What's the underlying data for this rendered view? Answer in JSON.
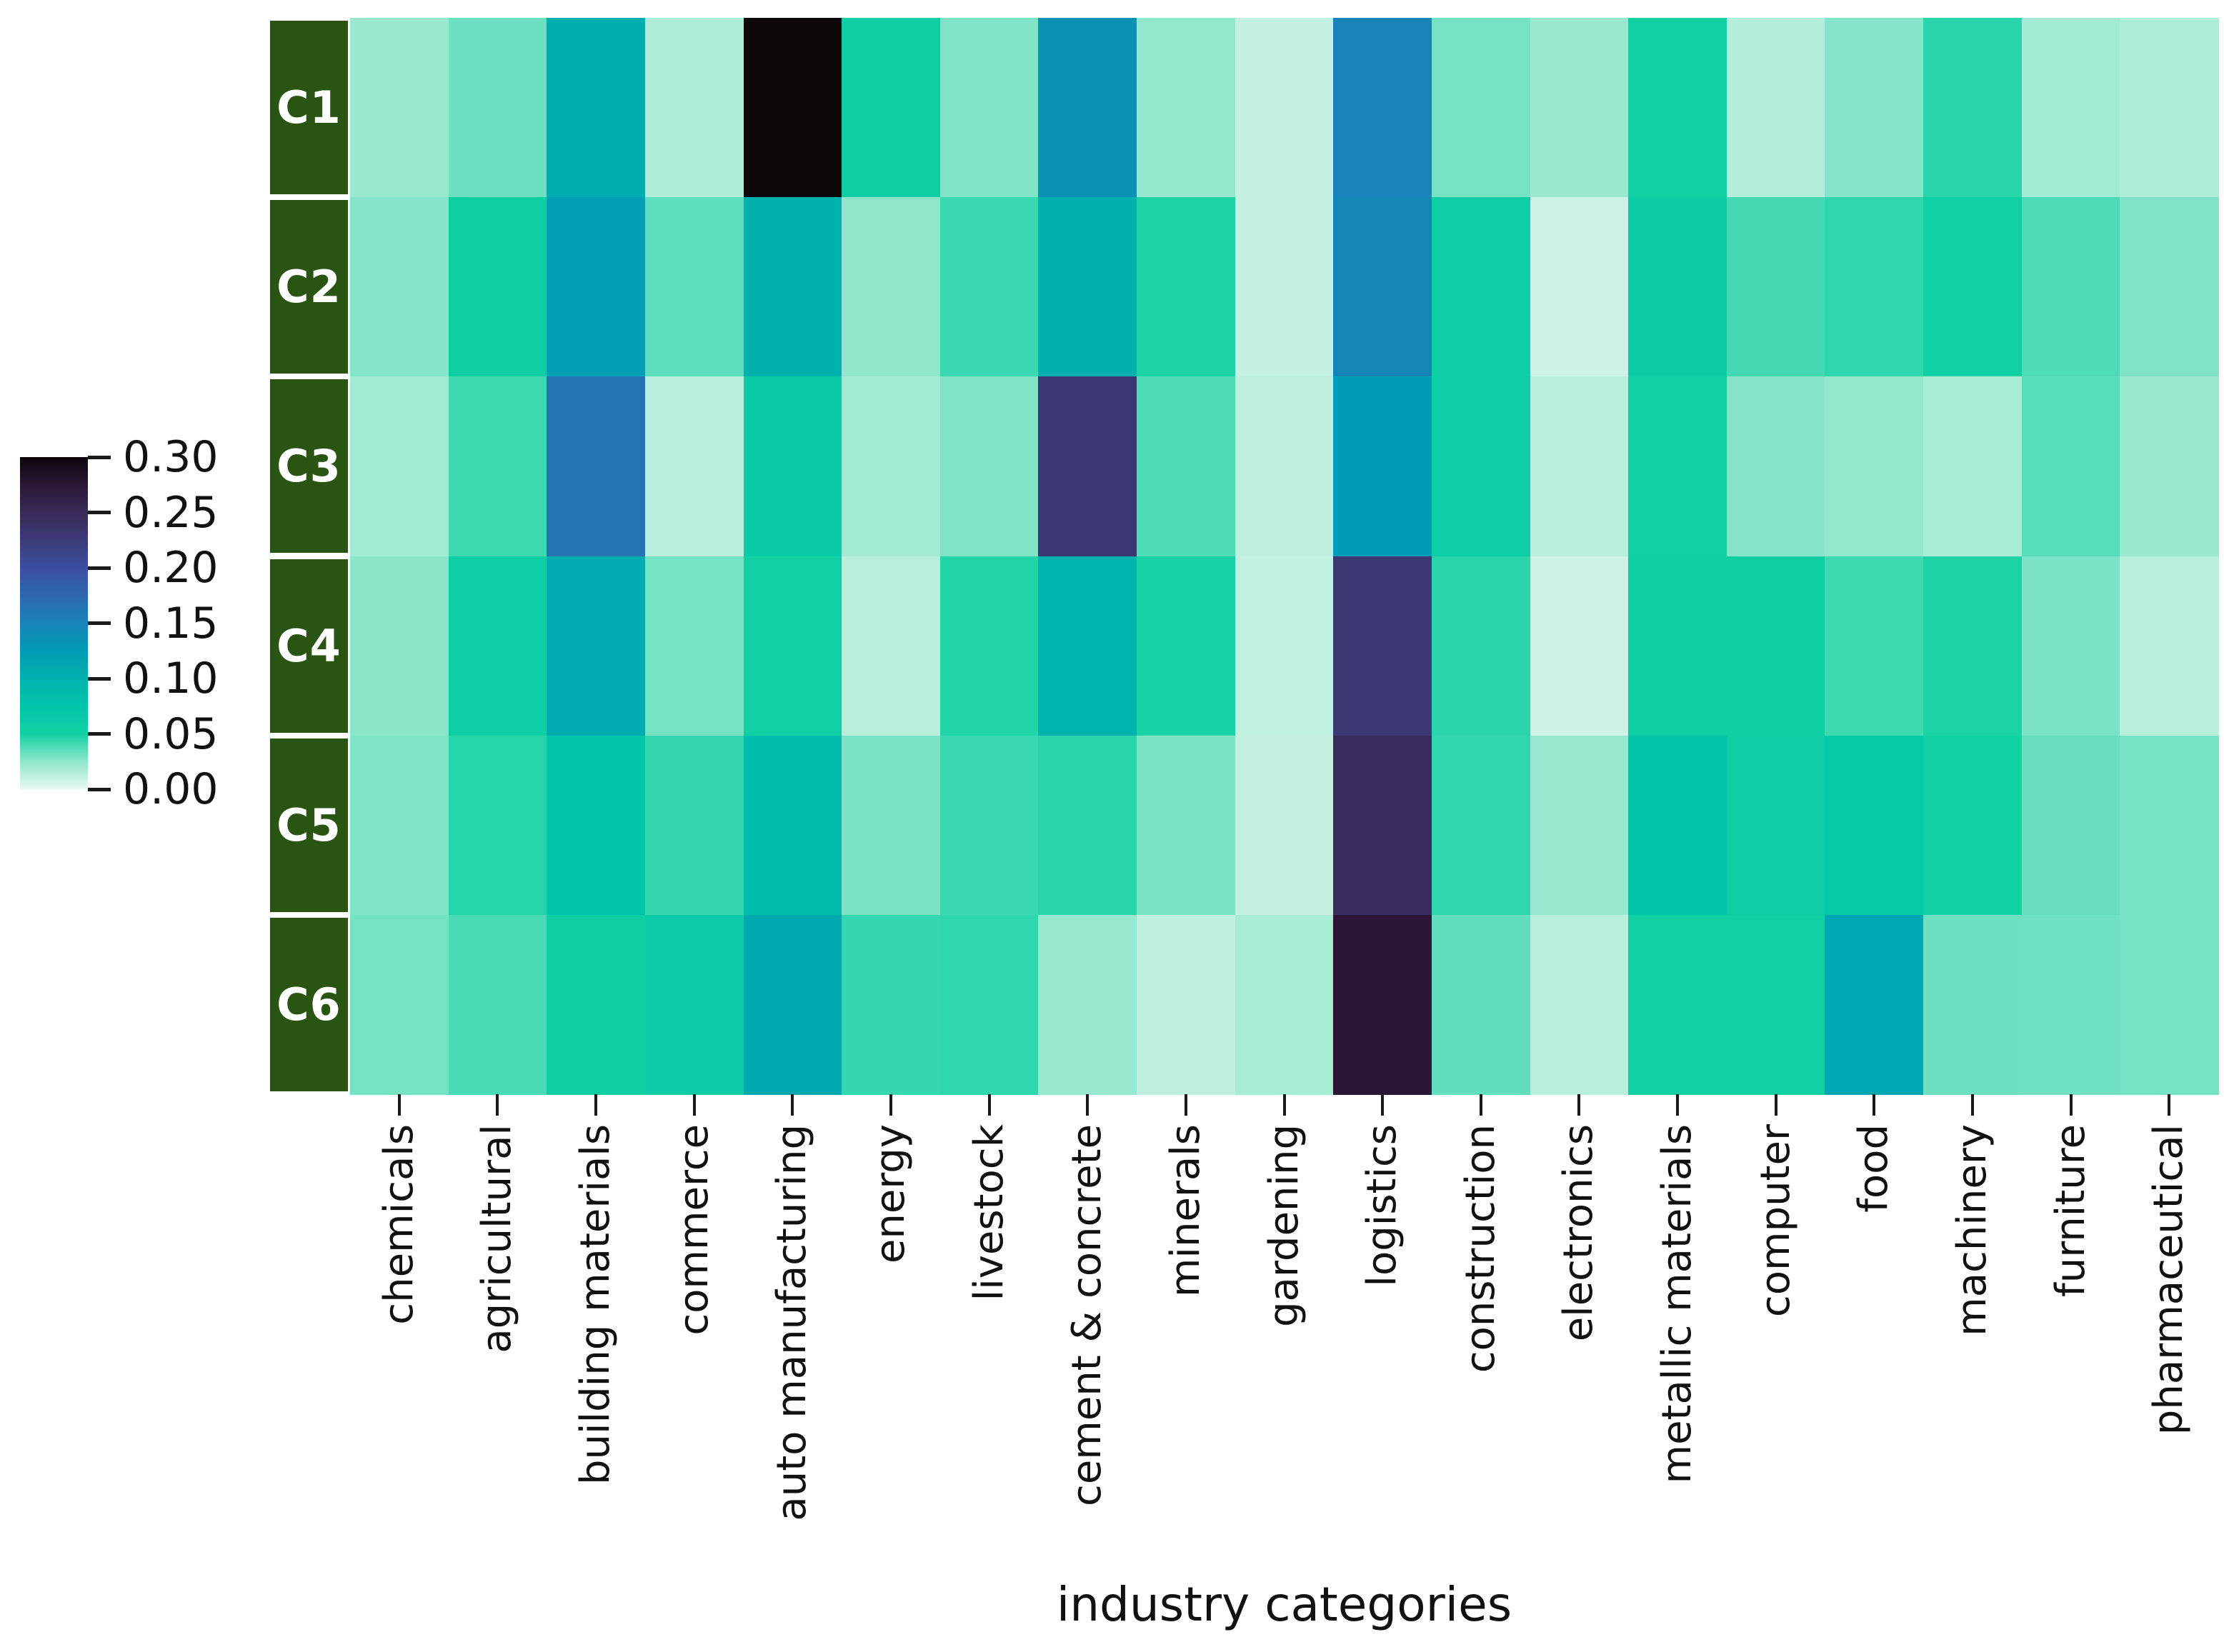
{
  "chart_data": {
    "type": "heatmap",
    "title": "",
    "xlabel": "industry categories",
    "ylabel": "",
    "rows": [
      "C1",
      "C2",
      "C3",
      "C4",
      "C5",
      "C6"
    ],
    "columns": [
      "chemicals",
      "agricultural",
      "building materials",
      "commerce",
      "auto manufacturing",
      "energy",
      "livestock",
      "cement & concrete",
      "minerals",
      "gardening",
      "logistics",
      "construction",
      "electronics",
      "metallic materials",
      "computer",
      "food",
      "machinery",
      "furniture",
      "pharmaceutical"
    ],
    "values": [
      [
        0.022,
        0.032,
        0.105,
        0.016,
        0.3,
        0.055,
        0.028,
        0.135,
        0.024,
        0.01,
        0.15,
        0.03,
        0.022,
        0.052,
        0.015,
        0.027,
        0.045,
        0.02,
        0.017
      ],
      [
        0.027,
        0.055,
        0.12,
        0.035,
        0.1,
        0.025,
        0.042,
        0.1,
        0.048,
        0.01,
        0.148,
        0.057,
        0.008,
        0.058,
        0.04,
        0.044,
        0.053,
        0.038,
        0.028
      ],
      [
        0.02,
        0.041,
        0.165,
        0.013,
        0.062,
        0.02,
        0.028,
        0.23,
        0.038,
        0.012,
        0.125,
        0.057,
        0.013,
        0.053,
        0.027,
        0.024,
        0.018,
        0.036,
        0.022
      ],
      [
        0.026,
        0.057,
        0.107,
        0.03,
        0.053,
        0.014,
        0.047,
        0.098,
        0.049,
        0.011,
        0.228,
        0.045,
        0.008,
        0.055,
        0.055,
        0.041,
        0.048,
        0.029,
        0.014
      ],
      [
        0.028,
        0.046,
        0.072,
        0.043,
        0.085,
        0.029,
        0.042,
        0.045,
        0.029,
        0.01,
        0.245,
        0.044,
        0.023,
        0.075,
        0.057,
        0.065,
        0.051,
        0.033,
        0.03
      ],
      [
        0.03,
        0.039,
        0.055,
        0.06,
        0.11,
        0.043,
        0.044,
        0.023,
        0.012,
        0.018,
        0.275,
        0.034,
        0.013,
        0.052,
        0.052,
        0.112,
        0.032,
        0.031,
        0.03
      ]
    ],
    "vmin": 0.0,
    "vmax": 0.3,
    "legend_position": "left",
    "grid": false,
    "colorbar_tick_labels": [
      "0.30",
      "0.25",
      "0.20",
      "0.15",
      "0.10",
      "0.05",
      "0.00"
    ],
    "colorbar_tick_values": [
      0.3,
      0.25,
      0.2,
      0.15,
      0.1,
      0.05,
      0.0
    ],
    "colormap_name": "mako_r",
    "colormap_stops": [
      [
        0.0,
        "#e9f9f0"
      ],
      [
        0.025,
        "#8fe6cd"
      ],
      [
        0.05,
        "#12d1a2"
      ],
      [
        0.075,
        "#00c5ab"
      ],
      [
        0.1,
        "#00b1ae"
      ],
      [
        0.125,
        "#009bb4"
      ],
      [
        0.15,
        "#1883b6"
      ],
      [
        0.175,
        "#2e68ac"
      ],
      [
        0.2,
        "#3a4f9f"
      ],
      [
        0.225,
        "#3c3a78"
      ],
      [
        0.25,
        "#392a58"
      ],
      [
        0.275,
        "#2a1735"
      ],
      [
        0.3,
        "#0d060b"
      ]
    ],
    "row_label_bg": "#2a5412",
    "row_label_fg": "#ffffff",
    "tick_color": "#1a1a1a"
  }
}
